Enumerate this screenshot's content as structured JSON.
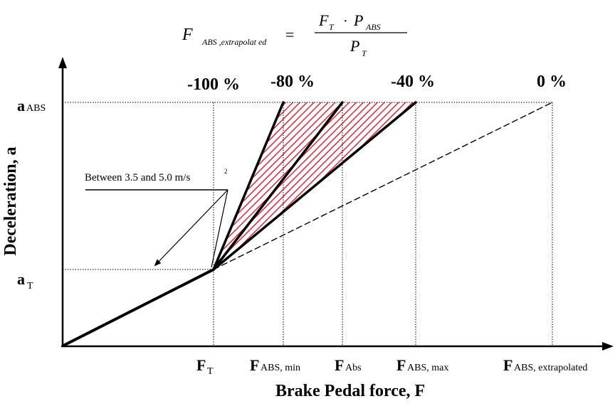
{
  "formula": {
    "lhs": "F",
    "lhs_sub": "ABS ,extrapolat ed",
    "equals": "=",
    "num_f": "F",
    "num_f_sub": "T",
    "dot": "·",
    "num_p": "P",
    "num_p_sub": "ABS",
    "den_p": "P",
    "den_p_sub": "T"
  },
  "axes": {
    "y_label": "Deceleration, a",
    "x_label": "Brake Pedal force, F"
  },
  "y_ticks": {
    "a_abs": {
      "main": "a",
      "sub": "ABS"
    },
    "a_t": {
      "main": "a",
      "sub": "T"
    }
  },
  "x_ticks": {
    "f_t": {
      "main": "F",
      "sub": "T"
    },
    "f_abs_min": {
      "main": "F",
      "sub": "ABS, min"
    },
    "f_abs": {
      "main": "F",
      "sub": "Abs"
    },
    "f_abs_max": {
      "main": "F",
      "sub": "ABS, max"
    },
    "f_abs_extrapolated": {
      "main": "F",
      "sub": "ABS, extrapolated"
    }
  },
  "percent_labels": {
    "p100": "-100 %",
    "p80": "-80 %",
    "p40": "-40 %",
    "p0": "0 %"
  },
  "annotation": {
    "text": "Between 3.5 and 5.0 m/s",
    "sup": "2"
  },
  "colors": {
    "hatch": "#e0283a",
    "line": "#000000"
  }
}
